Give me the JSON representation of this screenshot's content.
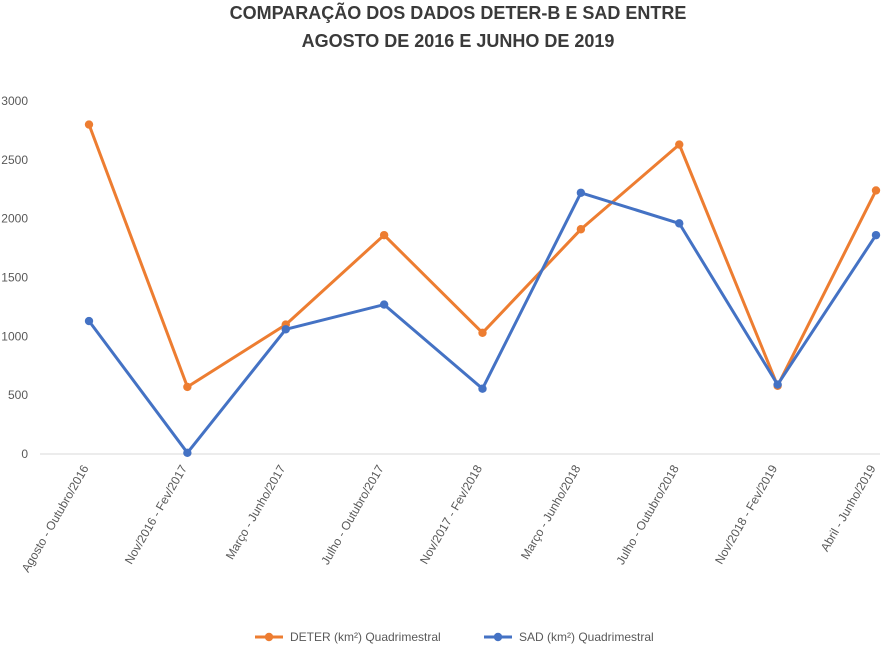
{
  "chart_data": {
    "type": "line",
    "title": [
      "COMPARAÇÃO DOS DADOS DETER-B E SAD ENTRE",
      "AGOSTO DE 2016 E JUNHO DE 2019"
    ],
    "categories": [
      "Agosto - Outubro/2016",
      "Nov/2016 - Fev/2017",
      "Março - Junho/2017",
      "Julho - Outubro/2017",
      "Nov/2017 - Fev/2018",
      "Março - Junho/2018",
      "Julho - Outubro/2018",
      "Nov/2018 - Fev/2019",
      "Abril - Junho/2019"
    ],
    "series": [
      {
        "name": "DETER (km²) Quadrimestral",
        "color": "#ED7D31",
        "values": [
          2800,
          570,
          1100,
          1860,
          1030,
          1910,
          2630,
          580,
          2240
        ]
      },
      {
        "name": "SAD (km²) Quadrimestral",
        "color": "#4472C4",
        "values": [
          1130,
          10,
          1060,
          1270,
          555,
          2220,
          1960,
          590,
          1860
        ]
      }
    ],
    "ylim": [
      0,
      3000
    ],
    "yticks": [
      "0",
      "500",
      "1000",
      "1500",
      "2000",
      "2500",
      "3000"
    ],
    "grid": false,
    "legend": "bottom"
  }
}
